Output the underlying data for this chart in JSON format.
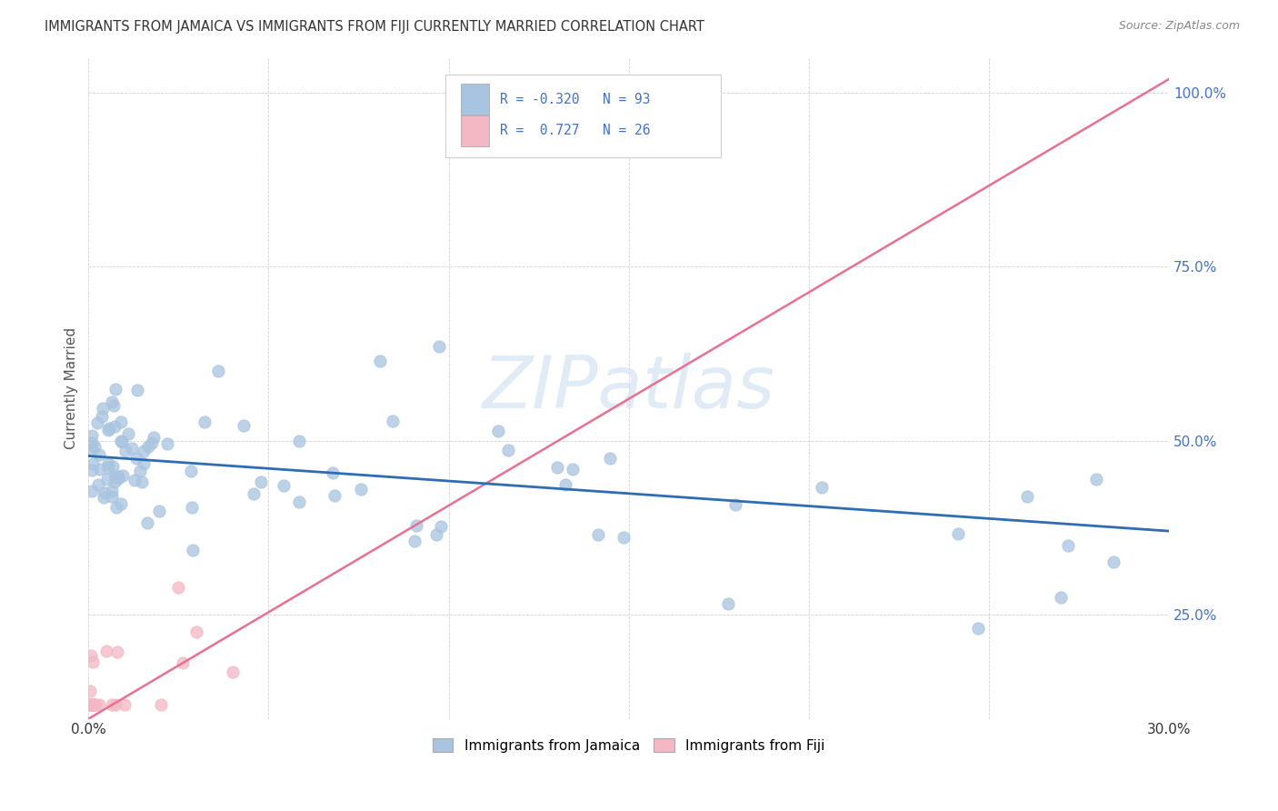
{
  "title": "IMMIGRANTS FROM JAMAICA VS IMMIGRANTS FROM FIJI CURRENTLY MARRIED CORRELATION CHART",
  "source": "Source: ZipAtlas.com",
  "ylabel": "Currently Married",
  "legend_label_jamaica": "Immigrants from Jamaica",
  "legend_label_fiji": "Immigrants from Fiji",
  "watermark": "ZIPatlas",
  "jamaica_color": "#a8c4e0",
  "fiji_color": "#f4b8c4",
  "jamaica_line_color": "#2e6db4",
  "fiji_line_color": "#e87090",
  "jamaica_R": -0.32,
  "jamaica_N": 93,
  "fiji_R": 0.727,
  "fiji_N": 26,
  "xmin": 0.0,
  "xmax": 0.3,
  "ymin": 0.1,
  "ymax": 1.05,
  "ytick_values": [
    0.25,
    0.5,
    0.75,
    1.0
  ],
  "ytick_labels": [
    "25.0%",
    "50.0%",
    "75.0%",
    "100.0%"
  ],
  "xtick_values": [
    0.0,
    0.05,
    0.1,
    0.15,
    0.2,
    0.25,
    0.3
  ],
  "fiji_line_x0": 0.0,
  "fiji_line_x1": 0.3,
  "fiji_line_y0": 0.1,
  "fiji_line_y1": 1.02,
  "jamaica_line_x0": 0.0,
  "jamaica_line_x1": 0.3,
  "jamaica_line_y0": 0.478,
  "jamaica_line_y1": 0.37
}
